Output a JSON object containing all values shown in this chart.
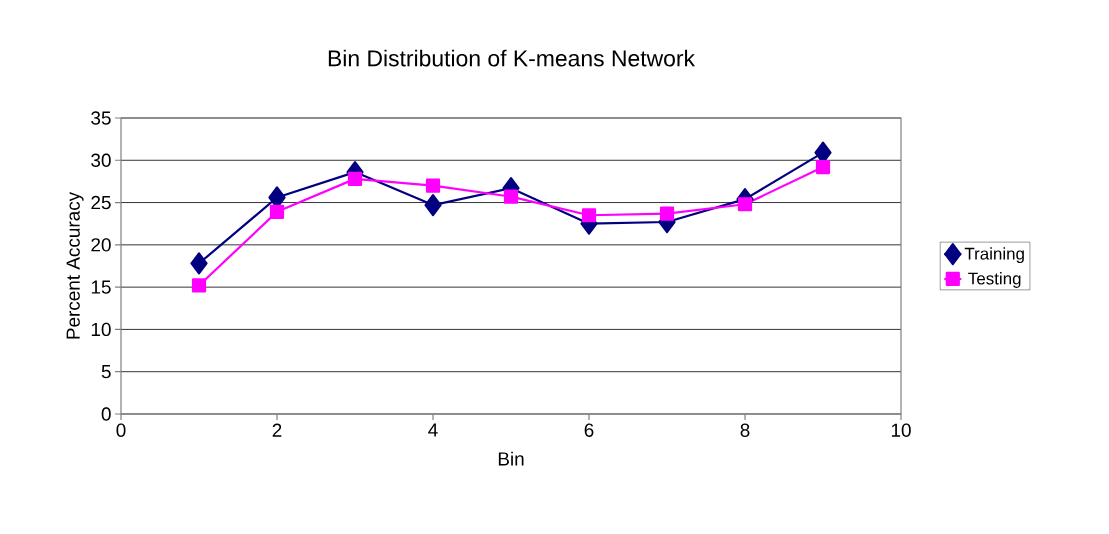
{
  "chart_data": {
    "type": "line",
    "title": "Bin Distribution of K-means Network",
    "xlabel": "Bin",
    "ylabel": "Percent Accuracy",
    "x": [
      1,
      2,
      3,
      4,
      5,
      6,
      7,
      8,
      9
    ],
    "series": [
      {
        "name": "Training",
        "color": "#000080",
        "marker": "diamond",
        "values": [
          17.8,
          25.6,
          28.6,
          24.7,
          26.7,
          22.5,
          22.7,
          25.4,
          30.9
        ]
      },
      {
        "name": "Testing",
        "color": "#ff00ff",
        "marker": "square",
        "values": [
          15.2,
          23.9,
          27.8,
          27.0,
          25.7,
          23.5,
          23.7,
          24.8,
          29.2
        ]
      }
    ],
    "xlim": [
      0,
      10
    ],
    "xticks": [
      0,
      2,
      4,
      6,
      8,
      10
    ],
    "ylim": [
      0,
      35
    ],
    "yticks": [
      0,
      5,
      10,
      15,
      20,
      25,
      30,
      35
    ],
    "grid": "y",
    "legend": "right"
  }
}
